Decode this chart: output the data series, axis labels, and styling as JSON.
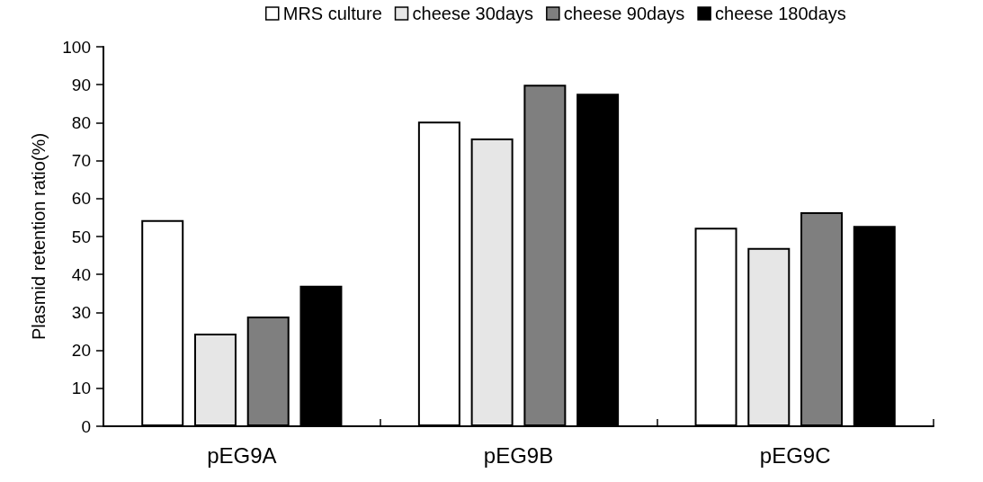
{
  "chart_data": {
    "type": "bar",
    "ylabel": "Plasmid retention ratio(%)",
    "categories": [
      "pEG9A",
      "pEG9B",
      "pEG9C"
    ],
    "series": [
      {
        "name": "MRS culture",
        "color": "#ffffff",
        "values": [
          54.3,
          80.3,
          52.3
        ]
      },
      {
        "name": "cheese 30days",
        "color": "#e6e6e6",
        "values": [
          24.4,
          75.8,
          47.0
        ]
      },
      {
        "name": "cheese 90days",
        "color": "#7f7f7f",
        "values": [
          28.9,
          90.0,
          56.4
        ]
      },
      {
        "name": "cheese 180days",
        "color": "#000000",
        "values": [
          37.0,
          87.6,
          52.8
        ]
      }
    ],
    "ylim": [
      0,
      100
    ],
    "yticks": [
      0,
      10,
      20,
      30,
      40,
      50,
      60,
      70,
      80,
      90,
      100
    ],
    "grid": false,
    "legend": "top"
  }
}
